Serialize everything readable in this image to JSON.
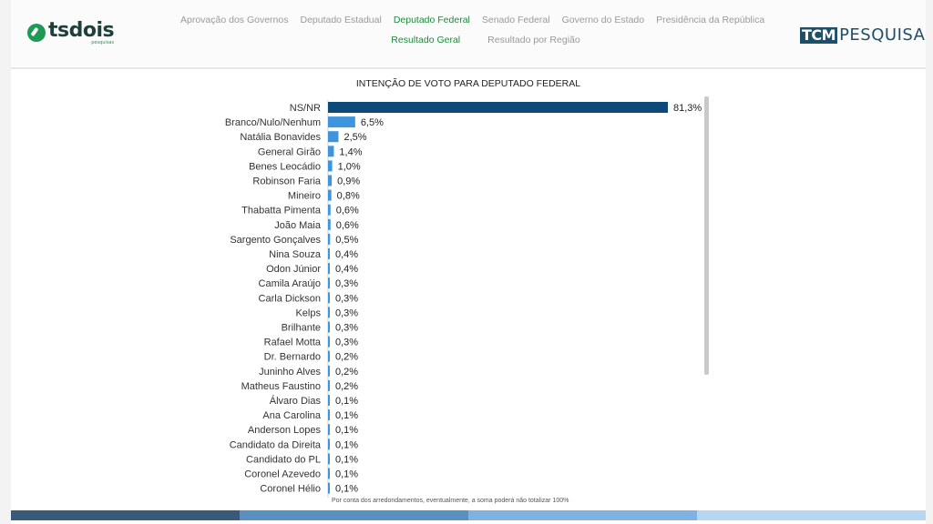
{
  "logos": {
    "left": {
      "name": "tsdois",
      "sub": "pesquisas"
    },
    "right": {
      "box": "TCM",
      "text": "PESQUISA"
    }
  },
  "nav": {
    "row1": [
      {
        "label": "Aprovação dos Governos",
        "active": false
      },
      {
        "label": "Deputado Estadual",
        "active": false
      },
      {
        "label": "Deputado Federal",
        "active": true
      },
      {
        "label": "Senado Federal",
        "active": false
      },
      {
        "label": "Governo do Estado",
        "active": false
      },
      {
        "label": "Presidência da República",
        "active": false
      }
    ],
    "row2": [
      {
        "label": "Resultado Geral",
        "active": true
      },
      {
        "label": "Resultado por Região",
        "active": false
      }
    ]
  },
  "footnote": "Por conta dos arredondamentos, eventualmente, a soma poderá não totalizar 100%",
  "colors": {
    "bar_primary": "#0d4a7a",
    "bar_secondary": "#3f95dd",
    "bottom_segments": [
      "#3a5a7a",
      "#5a8fc0",
      "#7fb2e0",
      "#b7d6f2"
    ]
  },
  "chart_data": {
    "type": "bar",
    "orientation": "horizontal",
    "title": "INTENÇÃO DE VOTO PARA DEPUTADO FEDERAL",
    "xlim": [
      0,
      81.3
    ],
    "categories": [
      "NS/NR",
      "Branco/Nulo/Nenhum",
      "Natália Bonavides",
      "General Girão",
      "Benes Leocádio",
      "Robinson Faria",
      "Mineiro",
      "Thabatta Pimenta",
      "João Maia",
      "Sargento Gonçalves",
      "Nina Souza",
      "Odon Júnior",
      "Camila Araújo",
      "Carla Dickson",
      "Kelps",
      "Brilhante",
      "Rafael Motta",
      "Dr. Bernardo",
      "Juninho Alves",
      "Matheus Faustino",
      "Álvaro Dias",
      "Ana Carolina",
      "Anderson Lopes",
      "Candidato da Direita",
      "Candidato do PL",
      "Coronel Azevedo",
      "Coronel Hélio"
    ],
    "values": [
      81.3,
      6.5,
      2.5,
      1.4,
      1.0,
      0.9,
      0.8,
      0.6,
      0.6,
      0.5,
      0.4,
      0.4,
      0.3,
      0.3,
      0.3,
      0.3,
      0.3,
      0.2,
      0.2,
      0.2,
      0.1,
      0.1,
      0.1,
      0.1,
      0.1,
      0.1,
      0.1
    ],
    "value_labels": [
      "81,3%",
      "6,5%",
      "2,5%",
      "1,4%",
      "1,0%",
      "0,9%",
      "0,8%",
      "0,6%",
      "0,6%",
      "0,5%",
      "0,4%",
      "0,4%",
      "0,3%",
      "0,3%",
      "0,3%",
      "0,3%",
      "0,3%",
      "0,2%",
      "0,2%",
      "0,2%",
      "0,1%",
      "0,1%",
      "0,1%",
      "0,1%",
      "0,1%",
      "0,1%",
      "0,1%"
    ]
  }
}
